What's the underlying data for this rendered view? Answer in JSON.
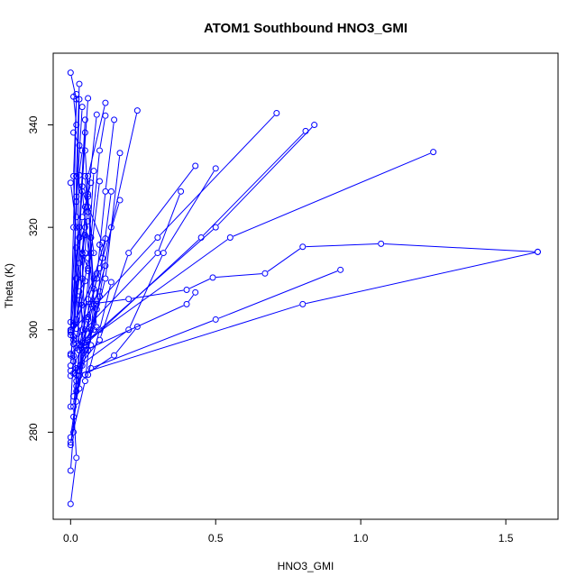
{
  "chart_data": {
    "type": "scatter",
    "title": "ATOM1 Southbound HNO3_GMI",
    "xlabel": "HNO3_GMI",
    "ylabel": "Theta (K)",
    "xlim": [
      -0.06,
      1.68
    ],
    "ylim": [
      263,
      354
    ],
    "xticks": [
      0.0,
      0.5,
      1.0,
      1.5
    ],
    "xtick_labels": [
      "0.0",
      "0.5",
      "1.0",
      "1.5"
    ],
    "yticks": [
      280,
      300,
      320,
      340
    ],
    "ytick_labels": [
      "280",
      "300",
      "320",
      "340"
    ],
    "grid": false,
    "legend": "none",
    "color": "#0000ff",
    "marker": "open-circle",
    "series": [
      {
        "x": [
          0.0,
          0.02,
          0.01,
          0.03,
          0.02,
          0.01,
          0.02,
          0.0
        ],
        "y": [
          266,
          275,
          285,
          296,
          310,
          330,
          345,
          350.2
        ]
      },
      {
        "x": [
          0.0,
          0.01,
          0.02,
          0.04,
          0.03,
          0.05
        ],
        "y": [
          272.5,
          280,
          290,
          300,
          320,
          341
        ]
      },
      {
        "x": [
          0.0,
          0.02,
          0.05,
          0.04,
          0.06,
          0.12
        ],
        "y": [
          277.5,
          286,
          297,
          315,
          330,
          344.3
        ]
      },
      {
        "x": [
          0.0,
          0.05,
          0.08,
          0.06,
          0.09
        ],
        "y": [
          278,
          290,
          305,
          326,
          342
        ]
      },
      {
        "x": [
          0.0,
          0.03,
          0.06,
          0.07,
          0.1,
          0.12
        ],
        "y": [
          279,
          291,
          302,
          318,
          335,
          341.8
        ]
      },
      {
        "x": [
          0.01,
          0.04,
          0.09,
          0.12,
          0.15
        ],
        "y": [
          283,
          296,
          310,
          327,
          341
        ]
      },
      {
        "x": [
          0.0,
          0.06,
          0.1
        ],
        "y": [
          291,
          296,
          306.5
        ]
      },
      {
        "x": [
          0.0,
          0.08,
          0.14,
          0.23
        ],
        "y": [
          295.3,
          300,
          320,
          342.8
        ]
      },
      {
        "x": [
          0.01,
          0.1,
          0.2,
          0.43
        ],
        "y": [
          291.5,
          298,
          315,
          332
        ]
      },
      {
        "x": [
          0.02,
          0.2,
          0.32,
          0.5
        ],
        "y": [
          292.5,
          300,
          315,
          331.5
        ]
      },
      {
        "x": [
          0.02,
          0.3,
          0.38
        ],
        "y": [
          298.3,
          315,
          327
        ]
      },
      {
        "x": [
          0.0,
          0.3,
          0.71
        ],
        "y": [
          299.5,
          318,
          342.3
        ]
      },
      {
        "x": [
          0.03,
          0.45,
          0.81
        ],
        "y": [
          296,
          318,
          338.8
        ]
      },
      {
        "x": [
          0.05,
          0.5,
          0.84
        ],
        "y": [
          297.5,
          320,
          340
        ]
      },
      {
        "x": [
          0.06,
          0.55,
          1.25
        ],
        "y": [
          298,
          318,
          334.7
        ]
      },
      {
        "x": [
          0.06,
          0.1,
          0.14
        ],
        "y": [
          291.2,
          300,
          309.3
        ]
      },
      {
        "x": [
          0.05,
          0.4,
          0.43
        ],
        "y": [
          296,
          305,
          307.3
        ]
      },
      {
        "x": [
          0.04,
          0.2,
          0.4,
          0.49,
          0.67,
          0.8,
          1.07,
          1.61
        ],
        "y": [
          304.8,
          306,
          307.8,
          310.2,
          311,
          316.2,
          316.8,
          315.2
        ]
      },
      {
        "x": [
          0.07,
          0.5,
          0.93
        ],
        "y": [
          292.5,
          302,
          311.7
        ]
      },
      {
        "x": [
          0.05,
          0.15,
          0.23
        ],
        "y": [
          291.2,
          295,
          300.6
        ]
      },
      {
        "x": [
          0.02,
          0.8,
          1.61
        ],
        "y": [
          291.2,
          305,
          315.2
        ]
      },
      {
        "x": [
          0.02,
          0.12,
          0.17
        ],
        "y": [
          288,
          310,
          334.5
        ]
      },
      {
        "x": [
          0.01,
          0.09,
          0.14
        ],
        "y": [
          287,
          305,
          327
        ]
      },
      {
        "x": [
          0.03,
          0.07,
          0.1
        ],
        "y": [
          292,
          315,
          329
        ]
      },
      {
        "x": [
          0.0,
          0.03,
          0.06
        ],
        "y": [
          301.5,
          320,
          345.2
        ]
      },
      {
        "x": [
          0.0,
          0.02,
          0.04
        ],
        "y": [
          300,
          325,
          343.5
        ]
      },
      {
        "x": [
          0.0,
          0.03,
          0.05
        ],
        "y": [
          299,
          318,
          338.5
        ]
      },
      {
        "x": [
          0.01,
          0.04,
          0.07
        ],
        "y": [
          301,
          322,
          328.7
        ]
      },
      {
        "x": [
          0.02,
          0.05,
          0.06
        ],
        "y": [
          300.2,
          315,
          326.5
        ]
      },
      {
        "x": [
          0.02,
          0.08,
          0.12
        ],
        "y": [
          302,
          310,
          317.8
        ]
      },
      {
        "x": [
          0.03,
          0.1,
          0.17
        ],
        "y": [
          297,
          312,
          325.3
        ]
      },
      {
        "x": [
          0.02,
          0.06,
          0.09
        ],
        "y": [
          296.5,
          306,
          311
        ]
      },
      {
        "x": [
          0.04,
          0.08,
          0.12
        ],
        "y": [
          297.5,
          305,
          312.5
        ]
      },
      {
        "x": [
          0.01,
          0.03,
          0.06
        ],
        "y": [
          298.7,
          313,
          321.2
        ]
      },
      {
        "x": [
          0.01,
          0.04,
          0.05
        ],
        "y": [
          300.8,
          315,
          318.5
        ]
      },
      {
        "x": [
          0.0,
          0.02,
          0.03
        ],
        "y": [
          293,
          310,
          330.2
        ]
      },
      {
        "x": [
          0.0,
          0.04,
          0.05
        ],
        "y": [
          295,
          310,
          324
        ]
      },
      {
        "x": [
          0.01,
          0.02,
          0.03
        ],
        "y": [
          297.2,
          330,
          348
        ]
      },
      {
        "x": [
          0.0,
          0.01,
          0.02
        ],
        "y": [
          299.8,
          320,
          346
        ]
      },
      {
        "x": [
          0.01,
          0.06,
          0.08
        ],
        "y": [
          293.8,
          314,
          331
        ]
      },
      {
        "x": [
          0.0,
          0.07,
          0.09
        ],
        "y": [
          292,
          300,
          304
        ]
      },
      {
        "x": [
          0.02,
          0.11
        ],
        "y": [
          330,
          317
        ]
      },
      {
        "x": [
          0.05,
          0.08
        ],
        "y": [
          335,
          308
        ]
      },
      {
        "x": [
          0.04,
          0.09
        ],
        "y": [
          327,
          300.5
        ]
      },
      {
        "x": [
          0.02,
          0.04
        ],
        "y": [
          326,
          335
        ]
      },
      {
        "x": [
          0.02,
          0.03
        ],
        "y": [
          322,
          345
        ]
      },
      {
        "x": [
          0.06,
          0.08
        ],
        "y": [
          324,
          315
        ]
      },
      {
        "x": [
          0.05,
          0.06
        ],
        "y": [
          330,
          323
        ]
      },
      {
        "x": [
          0.03,
          0.04
        ],
        "y": [
          318,
          328
        ]
      },
      {
        "x": [
          0.02,
          0.05
        ],
        "y": [
          316,
          320
        ]
      },
      {
        "x": [
          0.07,
          0.1
        ],
        "y": [
          305,
          307.5
        ]
      },
      {
        "x": [
          0.03,
          0.05
        ],
        "y": [
          305.8,
          300
        ]
      },
      {
        "x": [
          0.0,
          0.02
        ],
        "y": [
          328.7,
          320
        ]
      },
      {
        "x": [
          0.01,
          0.02
        ],
        "y": [
          345.5,
          340
        ]
      },
      {
        "x": [
          0.01,
          0.03
        ],
        "y": [
          338.5,
          336
        ]
      },
      {
        "x": [
          0.1,
          0.11
        ],
        "y": [
          316.6,
          314
        ]
      },
      {
        "x": [
          0.06,
          0.07
        ],
        "y": [
          311.5,
          318
        ]
      },
      {
        "x": [
          0.04,
          0.06
        ],
        "y": [
          314.8,
          312
        ]
      },
      {
        "x": [
          0.03,
          0.05
        ],
        "y": [
          307.5,
          309.5
        ]
      },
      {
        "x": [
          0.06,
          0.07
        ],
        "y": [
          302.5,
          297
        ]
      },
      {
        "x": [
          0.01,
          0.02
        ],
        "y": [
          298,
          289
        ]
      },
      {
        "x": [
          0.03,
          0.04
        ],
        "y": [
          288.5,
          293
        ]
      },
      {
        "x": [
          0.0,
          0.01
        ],
        "y": [
          285,
          295
        ]
      }
    ]
  }
}
